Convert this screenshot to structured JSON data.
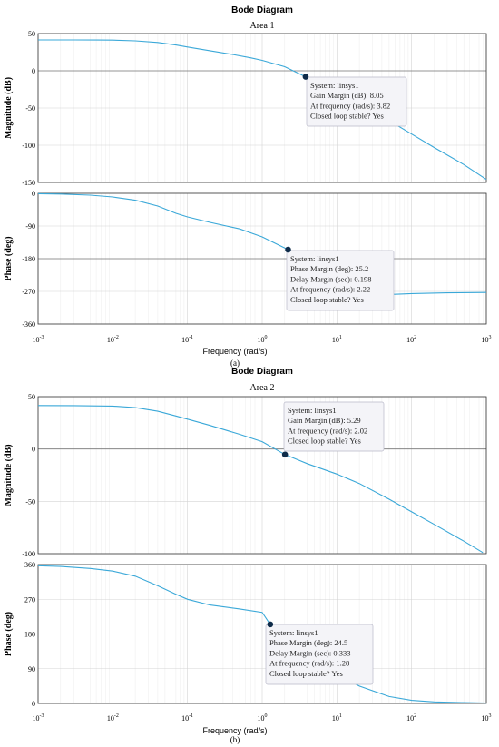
{
  "chart_data": [
    {
      "type": "line",
      "title": "Bode Diagram",
      "subtitle": "Area 1",
      "caption": "(a)",
      "xlabel": "Frequency  (rad/s)",
      "x_scale": "log",
      "xlim": [
        0.001,
        1000
      ],
      "x_ticks": [
        0.001,
        0.01,
        0.1,
        1,
        10,
        100,
        1000
      ],
      "x_tick_labels": [
        {
          "base": "10",
          "exp": "-3"
        },
        {
          "base": "10",
          "exp": "-2"
        },
        {
          "base": "10",
          "exp": "-1"
        },
        {
          "base": "10",
          "exp": "0"
        },
        {
          "base": "10",
          "exp": "1"
        },
        {
          "base": "10",
          "exp": "2"
        },
        {
          "base": "10",
          "exp": "3"
        }
      ],
      "line_color": "#3aa8d8",
      "grid": true,
      "magnitude": {
        "ylabel": "Magnitude (dB)",
        "ylim": [
          -150,
          50
        ],
        "y_ticks": [
          50,
          0,
          -50,
          -100,
          -150
        ],
        "reference_line": 0,
        "x": [
          0.001,
          0.003,
          0.006,
          0.01,
          0.02,
          0.04,
          0.07,
          0.1,
          0.2,
          0.4,
          0.7,
          1,
          2,
          3.82,
          6,
          10,
          20,
          50,
          100,
          200,
          500,
          1000
        ],
        "y": [
          41.5,
          41.5,
          41.4,
          41.2,
          40.3,
          38,
          34.6,
          32,
          27,
          22,
          17.5,
          14,
          5.5,
          -8.05,
          -18,
          -30,
          -46,
          -67,
          -85,
          -103,
          -126,
          -146
        ],
        "marker": {
          "x": 3.82,
          "y": -8.05
        },
        "tooltip": [
          "System: linsys1",
          "Gain Margin (dB): 8.05",
          "At frequency (rad/s): 3.82",
          "Closed loop stable? Yes"
        ]
      },
      "phase": {
        "ylabel": "Phase (deg)",
        "ylim": [
          -360,
          0
        ],
        "y_ticks": [
          0,
          -90,
          -180,
          -270,
          -360
        ],
        "reference_line": -180,
        "x": [
          0.001,
          0.002,
          0.005,
          0.01,
          0.02,
          0.04,
          0.07,
          0.1,
          0.2,
          0.5,
          1,
          2.22,
          4,
          7,
          10,
          20,
          40,
          60,
          100,
          300,
          1000
        ],
        "y": [
          -1,
          -2,
          -5,
          -10,
          -19,
          -35,
          -55,
          -65,
          -80,
          -98,
          -120,
          -155,
          -190,
          -240,
          -265,
          -275,
          -277,
          -278,
          -276,
          -274,
          -273
        ],
        "marker": {
          "x": 2.22,
          "y": -155
        },
        "tooltip": [
          "System: linsys1",
          "Phase Margin (deg): 25.2",
          "Delay Margin (sec): 0.198",
          "At frequency (rad/s): 2.22",
          "Closed loop stable? Yes"
        ]
      }
    },
    {
      "type": "line",
      "title": "Bode Diagram",
      "subtitle": "Area 2",
      "caption": "(b)",
      "xlabel": "Frequency  (rad/s)",
      "x_scale": "log",
      "xlim": [
        0.001,
        1000
      ],
      "x_ticks": [
        0.001,
        0.01,
        0.1,
        1,
        10,
        100,
        1000
      ],
      "x_tick_labels": [
        {
          "base": "10",
          "exp": "-3"
        },
        {
          "base": "10",
          "exp": "-2"
        },
        {
          "base": "10",
          "exp": "-1"
        },
        {
          "base": "10",
          "exp": "0"
        },
        {
          "base": "10",
          "exp": "1"
        },
        {
          "base": "10",
          "exp": "2"
        },
        {
          "base": "10",
          "exp": "3"
        }
      ],
      "line_color": "#3aa8d8",
      "grid": true,
      "magnitude": {
        "ylabel": "Magnitude (dB)",
        "ylim": [
          -100,
          50
        ],
        "y_ticks": [
          50,
          0,
          -50,
          -100
        ],
        "reference_line": 0,
        "x": [
          0.001,
          0.003,
          0.01,
          0.02,
          0.04,
          0.07,
          0.1,
          0.2,
          0.5,
          1,
          2.02,
          4,
          10,
          20,
          50,
          100,
          200,
          500,
          900
        ],
        "y": [
          41.5,
          41.4,
          41,
          39.5,
          36,
          31.5,
          28.5,
          22.5,
          14,
          7,
          -5.29,
          -14,
          -24,
          -33,
          -48,
          -60,
          -72,
          -88,
          -99
        ],
        "marker": {
          "x": 2.02,
          "y": -5.29
        },
        "tooltip": [
          "System: linsys1",
          "Gain Margin (dB): 5.29",
          "At frequency (rad/s): 2.02",
          "Closed loop stable? Yes"
        ]
      },
      "phase": {
        "ylabel": "Phase (deg)",
        "ylim": [
          0,
          360
        ],
        "y_ticks": [
          360,
          270,
          180,
          90,
          0
        ],
        "reference_line": 180,
        "x": [
          0.001,
          0.002,
          0.005,
          0.01,
          0.02,
          0.04,
          0.07,
          0.1,
          0.2,
          0.5,
          1,
          1.28,
          3,
          7,
          10,
          20,
          50,
          100,
          200,
          500,
          1000
        ],
        "y": [
          357,
          355,
          350,
          343,
          330,
          305,
          283,
          270,
          255,
          245,
          236,
          205,
          165,
          100,
          75,
          45,
          18,
          8,
          4,
          2,
          1
        ],
        "marker": {
          "x": 1.28,
          "y": 205
        },
        "tooltip": [
          "System: linsys1",
          "Phase Margin (deg): 24.5",
          "Delay Margin (sec): 0.333",
          "At frequency (rad/s): 1.28",
          "Closed loop stable? Yes"
        ]
      }
    }
  ]
}
